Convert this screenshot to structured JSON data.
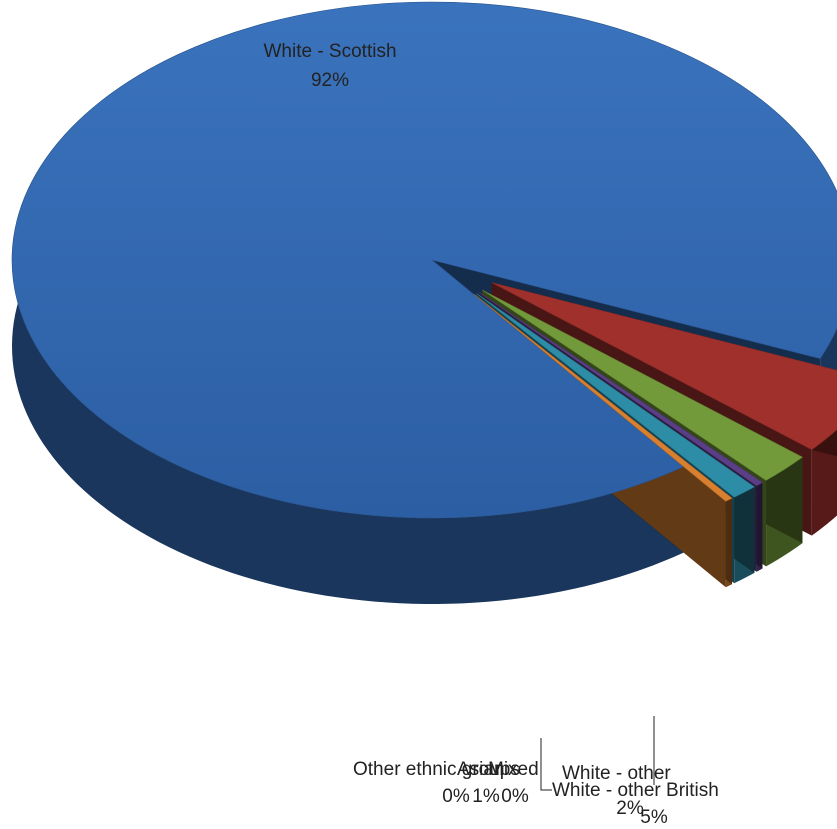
{
  "chart_data": {
    "type": "pie",
    "style": "3d-exploded",
    "title": "",
    "legend": "none",
    "slices": [
      {
        "label": "White - Scottish",
        "percent_label": "92%",
        "value": 92,
        "color": "#2f63a8"
      },
      {
        "label": "White - other British",
        "percent_label": "5%",
        "value": 5,
        "color": "#a0302c"
      },
      {
        "label": "White - other",
        "percent_label": "2%",
        "value": 2,
        "color": "#739a3a"
      },
      {
        "label": "Mixed",
        "percent_label": "0%",
        "value": 0.3,
        "color": "#5b3f86"
      },
      {
        "label": "Asian",
        "percent_label": "1%",
        "value": 1,
        "color": "#2d8ca6"
      },
      {
        "label": "Other ethnic groups",
        "percent_label": "0%",
        "value": 0.3,
        "color": "#d98030"
      }
    ]
  }
}
